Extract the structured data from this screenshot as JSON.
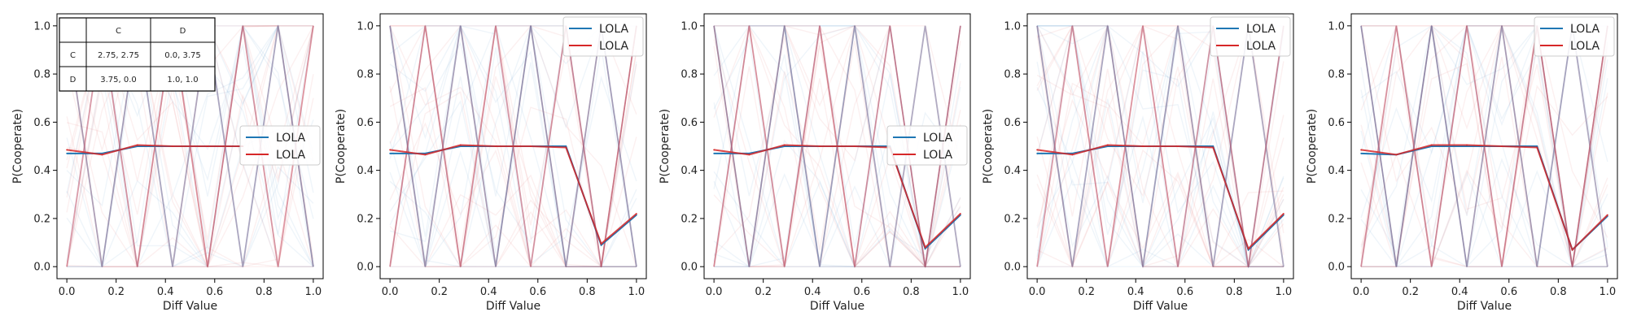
{
  "chart_data": [
    {
      "type": "line",
      "xlabel": "Diff Value",
      "ylabel": "P(Cooperate)",
      "xlim": [
        -0.04,
        1.04
      ],
      "ylim": [
        -0.05,
        1.05
      ],
      "xticks": [
        "0.0",
        "0.2",
        "0.4",
        "0.6",
        "0.8",
        "1.0"
      ],
      "yticks": [
        "0.0",
        "0.2",
        "0.4",
        "0.6",
        "0.8",
        "1.0"
      ],
      "grid": false,
      "legend_position": "center-right",
      "x": [
        0.0,
        0.143,
        0.286,
        0.429,
        0.571,
        0.714,
        0.857,
        1.0
      ],
      "series": [
        {
          "name": "LOLA",
          "color": "#1f77b4",
          "values": [
            0.47,
            0.47,
            0.5,
            0.5,
            0.5,
            0.5,
            null,
            null
          ]
        },
        {
          "name": "LOLA",
          "color": "#d62728",
          "values": [
            0.485,
            0.465,
            0.505,
            0.5,
            0.5,
            0.5,
            null,
            null
          ]
        }
      ],
      "payoff_table": {
        "header": [
          "",
          "C",
          "D"
        ],
        "rows": [
          [
            "C",
            "2.75, 2.75",
            "0.0, 3.75"
          ],
          [
            "D",
            "3.75, 0.0",
            "1.0, 1.0"
          ]
        ]
      }
    },
    {
      "type": "line",
      "xlabel": "Diff Value",
      "ylabel": "P(Cooperate)",
      "xlim": [
        -0.04,
        1.04
      ],
      "ylim": [
        -0.05,
        1.05
      ],
      "xticks": [
        "0.0",
        "0.2",
        "0.4",
        "0.6",
        "0.8",
        "1.0"
      ],
      "yticks": [
        "0.0",
        "0.2",
        "0.4",
        "0.6",
        "0.8",
        "1.0"
      ],
      "grid": false,
      "legend_position": "upper-right",
      "x": [
        0.0,
        0.143,
        0.286,
        0.429,
        0.571,
        0.714,
        0.857,
        1.0
      ],
      "series": [
        {
          "name": "LOLA",
          "color": "#1f77b4",
          "values": [
            0.47,
            0.47,
            0.5,
            0.5,
            0.5,
            0.5,
            0.09,
            0.215
          ]
        },
        {
          "name": "LOLA",
          "color": "#d62728",
          "values": [
            0.485,
            0.465,
            0.505,
            0.5,
            0.5,
            0.495,
            0.095,
            0.22
          ]
        }
      ]
    },
    {
      "type": "line",
      "xlabel": "Diff Value",
      "ylabel": "P(Cooperate)",
      "xlim": [
        -0.04,
        1.04
      ],
      "ylim": [
        -0.05,
        1.05
      ],
      "xticks": [
        "0.0",
        "0.2",
        "0.4",
        "0.6",
        "0.8",
        "1.0"
      ],
      "yticks": [
        "0.0",
        "0.2",
        "0.4",
        "0.6",
        "0.8",
        "1.0"
      ],
      "grid": false,
      "legend_position": "center-right",
      "x": [
        0.0,
        0.143,
        0.286,
        0.429,
        0.571,
        0.714,
        0.857,
        1.0
      ],
      "series": [
        {
          "name": "LOLA",
          "color": "#1f77b4",
          "values": [
            0.47,
            0.47,
            0.5,
            0.5,
            0.5,
            0.5,
            0.075,
            0.215
          ]
        },
        {
          "name": "LOLA",
          "color": "#d62728",
          "values": [
            0.485,
            0.465,
            0.505,
            0.5,
            0.5,
            0.495,
            0.08,
            0.22
          ]
        }
      ]
    },
    {
      "type": "line",
      "xlabel": "Diff Value",
      "ylabel": "P(Cooperate)",
      "xlim": [
        -0.04,
        1.04
      ],
      "ylim": [
        -0.05,
        1.05
      ],
      "xticks": [
        "0.0",
        "0.2",
        "0.4",
        "0.6",
        "0.8",
        "1.0"
      ],
      "yticks": [
        "0.0",
        "0.2",
        "0.4",
        "0.6",
        "0.8",
        "1.0"
      ],
      "grid": false,
      "legend_position": "upper-right",
      "x": [
        0.0,
        0.143,
        0.286,
        0.429,
        0.571,
        0.714,
        0.857,
        1.0
      ],
      "series": [
        {
          "name": "LOLA",
          "color": "#1f77b4",
          "values": [
            0.47,
            0.47,
            0.5,
            0.5,
            0.5,
            0.5,
            0.07,
            0.215
          ]
        },
        {
          "name": "LOLA",
          "color": "#d62728",
          "values": [
            0.485,
            0.465,
            0.505,
            0.5,
            0.5,
            0.495,
            0.075,
            0.22
          ]
        }
      ]
    },
    {
      "type": "line",
      "xlabel": "Diff Value",
      "ylabel": "P(Cooperate)",
      "xlim": [
        -0.04,
        1.04
      ],
      "ylim": [
        -0.05,
        1.05
      ],
      "xticks": [
        "0.0",
        "0.2",
        "0.4",
        "0.6",
        "0.8",
        "1.0"
      ],
      "yticks": [
        "0.0",
        "0.2",
        "0.4",
        "0.6",
        "0.8",
        "1.0"
      ],
      "grid": false,
      "legend_position": "upper-right",
      "x": [
        0.0,
        0.143,
        0.286,
        0.429,
        0.571,
        0.714,
        0.857,
        1.0
      ],
      "series": [
        {
          "name": "LOLA",
          "color": "#1f77b4",
          "values": [
            0.47,
            0.465,
            0.5,
            0.5,
            0.5,
            0.5,
            0.07,
            0.21
          ]
        },
        {
          "name": "LOLA",
          "color": "#d62728",
          "values": [
            0.485,
            0.465,
            0.505,
            0.505,
            0.5,
            0.495,
            0.07,
            0.215
          ]
        }
      ]
    }
  ]
}
